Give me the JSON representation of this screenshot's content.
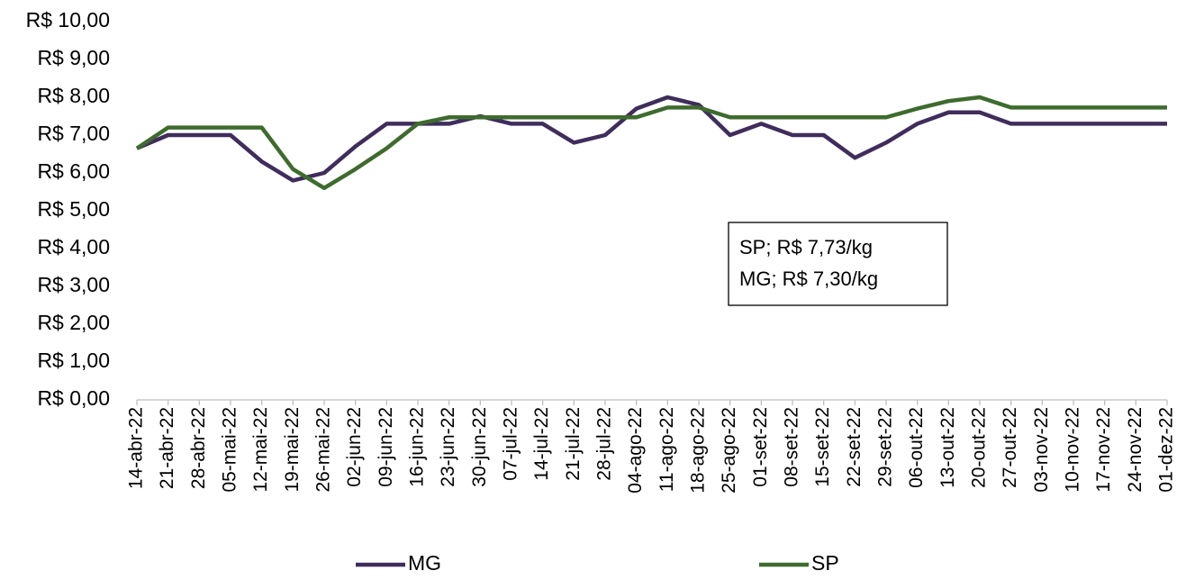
{
  "chart_data": {
    "type": "line",
    "categories": [
      "14-abr-22",
      "21-abr-22",
      "28-abr-22",
      "05-mai-22",
      "12-mai-22",
      "19-mai-22",
      "26-mai-22",
      "02-jun-22",
      "09-jun-22",
      "16-jun-22",
      "23-jun-22",
      "30-jun-22",
      "07-jul-22",
      "14-jul-22",
      "21-jul-22",
      "28-jul-22",
      "04-ago-22",
      "11-ago-22",
      "18-ago-22",
      "25-ago-22",
      "01-set-22",
      "08-set-22",
      "15-set-22",
      "22-set-22",
      "29-set-22",
      "06-out-22",
      "13-out-22",
      "20-out-22",
      "27-out-22",
      "03-nov-22",
      "10-nov-22",
      "17-nov-22",
      "24-nov-22",
      "01-dez-22"
    ],
    "series": [
      {
        "name": "MG",
        "color": "#3f2d5c",
        "values": [
          6.65,
          7.0,
          7.0,
          7.0,
          6.3,
          5.8,
          6.0,
          6.7,
          7.3,
          7.3,
          7.3,
          7.5,
          7.3,
          7.3,
          6.8,
          7.0,
          7.7,
          8.0,
          7.8,
          7.0,
          7.3,
          7.0,
          7.0,
          6.4,
          6.8,
          7.3,
          7.6,
          7.6,
          7.3,
          7.3,
          7.3,
          7.3,
          7.3,
          7.3
        ]
      },
      {
        "name": "SP",
        "color": "#3e6b2e",
        "values": [
          6.65,
          7.2,
          7.2,
          7.2,
          7.2,
          6.1,
          5.6,
          6.1,
          6.65,
          7.3,
          7.47,
          7.47,
          7.47,
          7.47,
          7.47,
          7.47,
          7.47,
          7.73,
          7.73,
          7.47,
          7.47,
          7.47,
          7.47,
          7.47,
          7.47,
          7.7,
          7.9,
          8.0,
          7.73,
          7.73,
          7.73,
          7.73,
          7.73,
          7.73
        ]
      }
    ],
    "ylim": [
      0,
      10
    ],
    "yticks": [
      {
        "value": 0,
        "label": "R$ 0,00"
      },
      {
        "value": 1,
        "label": "R$ 1,00"
      },
      {
        "value": 2,
        "label": "R$ 2,00"
      },
      {
        "value": 3,
        "label": "R$ 3,00"
      },
      {
        "value": 4,
        "label": "R$ 4,00"
      },
      {
        "value": 5,
        "label": "R$ 5,00"
      },
      {
        "value": 6,
        "label": "R$ 6,00"
      },
      {
        "value": 7,
        "label": "R$ 7,00"
      },
      {
        "value": 8,
        "label": "R$ 8,00"
      },
      {
        "value": 9,
        "label": "R$ 9,00"
      },
      {
        "value": 10,
        "label": "R$ 10,00"
      }
    ],
    "annotations": [
      "SP; R$ 7,73/kg",
      "MG; R$ 7,30/kg"
    ],
    "grid": false,
    "legend": "bottom"
  }
}
